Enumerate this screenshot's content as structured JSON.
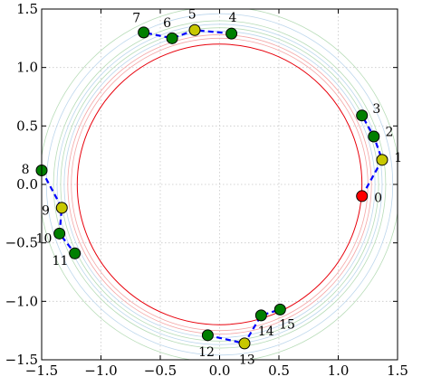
{
  "chart_data": {
    "type": "scatter",
    "xlim": [
      -1.5,
      1.5
    ],
    "ylim": [
      -1.5,
      1.5
    ],
    "grid": true,
    "x_ticks": [
      -1.5,
      -1.0,
      -0.5,
      0.0,
      0.5,
      1.0,
      1.5
    ],
    "y_ticks": [
      -1.5,
      -1.0,
      -0.5,
      0.0,
      0.5,
      1.0,
      1.5
    ],
    "x_tick_labels": [
      "−1.5",
      "−1.0",
      "−0.5",
      "0.0",
      "0.5",
      "1.0",
      "1.5"
    ],
    "y_tick_labels": [
      "−1.5",
      "−1.0",
      "−0.5",
      "0.0",
      "0.5",
      "1.0",
      "1.5"
    ],
    "circles": [
      {
        "r": 1.2,
        "color": "#e8000b"
      },
      {
        "r": 1.25,
        "color": "#f4a6a6"
      },
      {
        "r": 1.28,
        "color": "#f4a6a6"
      },
      {
        "r": 1.31,
        "color": "#bcd6ec"
      },
      {
        "r": 1.34,
        "color": "#b7dcb7"
      },
      {
        "r": 1.37,
        "color": "#bcd6ec"
      },
      {
        "r": 1.4,
        "color": "#b7dcb7"
      },
      {
        "r": 1.46,
        "color": "#bcd6ec"
      },
      {
        "r": 1.52,
        "color": "#b7dcb7"
      }
    ],
    "path_color": "#0000ff",
    "points": [
      {
        "label": "0",
        "x": 1.2,
        "y": -0.1,
        "color": "#ff0000"
      },
      {
        "label": "1",
        "x": 1.37,
        "y": 0.21,
        "color": "#c8c800"
      },
      {
        "label": "2",
        "x": 1.3,
        "y": 0.41,
        "color": "#007f00"
      },
      {
        "label": "3",
        "x": 1.2,
        "y": 0.59,
        "color": "#007f00"
      },
      {
        "label": "4",
        "x": 0.1,
        "y": 1.29,
        "color": "#007f00"
      },
      {
        "label": "5",
        "x": -0.21,
        "y": 1.32,
        "color": "#c8c800"
      },
      {
        "label": "6",
        "x": -0.4,
        "y": 1.25,
        "color": "#007f00"
      },
      {
        "label": "7",
        "x": -0.64,
        "y": 1.3,
        "color": "#007f00"
      },
      {
        "label": "8",
        "x": -1.5,
        "y": 0.12,
        "color": "#007f00"
      },
      {
        "label": "9",
        "x": -1.33,
        "y": -0.2,
        "color": "#c8c800"
      },
      {
        "label": "10",
        "x": -1.35,
        "y": -0.42,
        "color": "#007f00"
      },
      {
        "label": "11",
        "x": -1.22,
        "y": -0.59,
        "color": "#007f00"
      },
      {
        "label": "12",
        "x": -0.1,
        "y": -1.29,
        "color": "#007f00"
      },
      {
        "label": "13",
        "x": 0.21,
        "y": -1.36,
        "color": "#c8c800"
      },
      {
        "label": "14",
        "x": 0.35,
        "y": -1.12,
        "color": "#007f00"
      },
      {
        "label": "15",
        "x": 0.51,
        "y": -1.07,
        "color": "#007f00"
      }
    ],
    "segments": [
      [
        0,
        1,
        2,
        3
      ],
      [
        4,
        5,
        6,
        7
      ],
      [
        8,
        9,
        10,
        11
      ],
      [
        12,
        13,
        14,
        15
      ]
    ]
  }
}
